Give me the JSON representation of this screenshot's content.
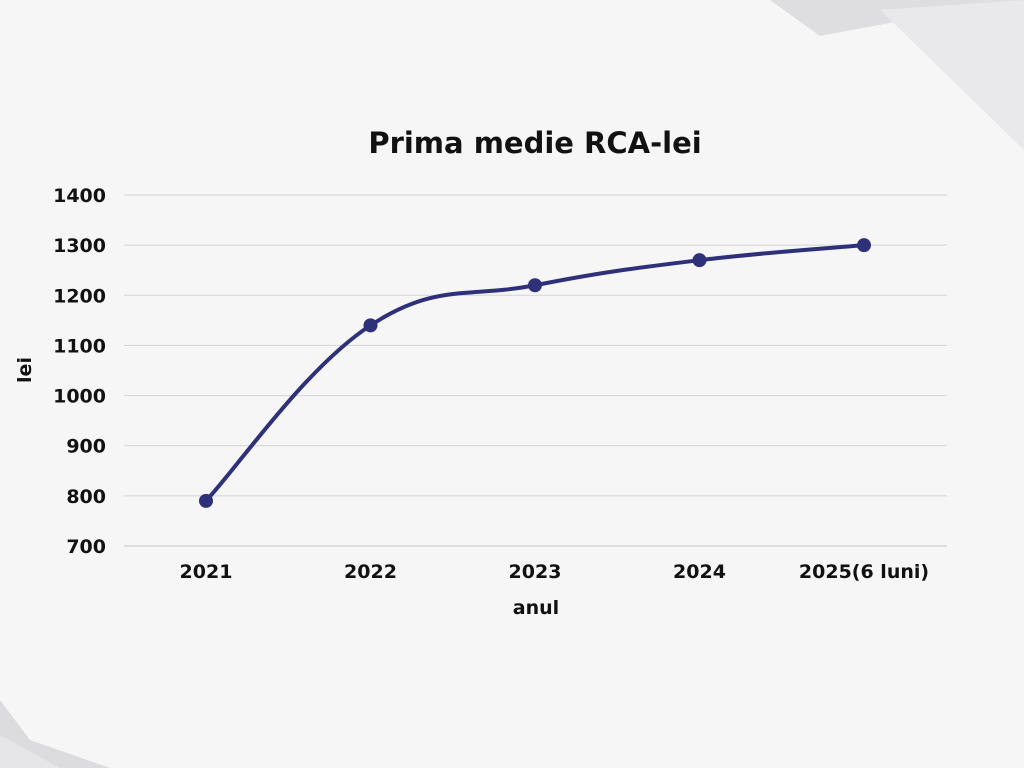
{
  "chart_data": {
    "type": "line",
    "title": "Prima medie RCA-lei",
    "xlabel": "anul",
    "ylabel": "lei",
    "categories": [
      "2021",
      "2022",
      "2023",
      "2024",
      "2025(6 luni)"
    ],
    "series": [
      {
        "values": [
          790,
          1140,
          1220,
          1270,
          1300
        ]
      }
    ],
    "ylim": [
      700,
      1400
    ],
    "yticks": [
      700,
      800,
      900,
      1000,
      1100,
      1200,
      1300,
      1400
    ],
    "grid": true,
    "smooth": true,
    "colors": {
      "line": "#2e317a",
      "gridline": "#d3d3d6",
      "text": "#111111",
      "background": "#f6f6f7"
    }
  }
}
